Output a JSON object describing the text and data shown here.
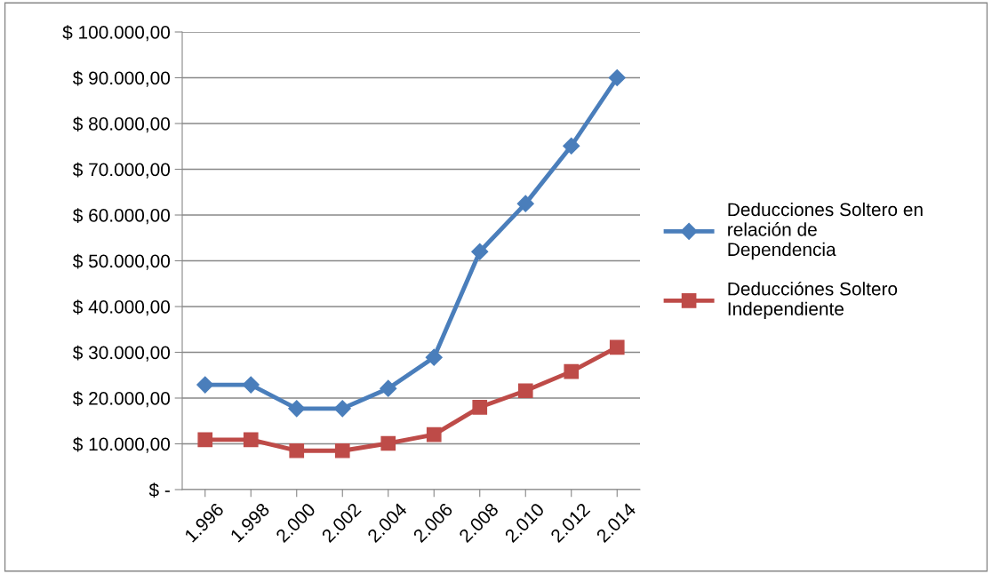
{
  "chart_data": {
    "type": "line",
    "categories": [
      "1.996",
      "1.998",
      "2.000",
      "2.002",
      "2.004",
      "2.006",
      "2.008",
      "2.010",
      "2.012",
      "2.014"
    ],
    "series": [
      {
        "name": "Deducciones Soltero en relación de Dependencia",
        "color": "#4a7ebb",
        "marker": "diamond",
        "values": [
          22900,
          22900,
          17700,
          17700,
          22100,
          28900,
          52000,
          62500,
          75100,
          90000
        ]
      },
      {
        "name": "Deducciónes Soltero Independiente",
        "color": "#be4b48",
        "marker": "square",
        "values": [
          10900,
          10900,
          8500,
          8500,
          10100,
          12000,
          18000,
          21600,
          25800,
          31100
        ]
      }
    ],
    "ylim": [
      0,
      100000
    ],
    "yticks": [
      {
        "value": 0,
        "label": "$ -"
      },
      {
        "value": 10000,
        "label": "$ 10.000,00"
      },
      {
        "value": 20000,
        "label": "$ 20.000,00"
      },
      {
        "value": 30000,
        "label": "$ 30.000,00"
      },
      {
        "value": 40000,
        "label": "$ 40.000,00"
      },
      {
        "value": 50000,
        "label": "$ 50.000,00"
      },
      {
        "value": 60000,
        "label": "$ 60.000,00"
      },
      {
        "value": 70000,
        "label": "$ 70.000,00"
      },
      {
        "value": 80000,
        "label": "$ 80.000,00"
      },
      {
        "value": 90000,
        "label": "$ 90.000,00"
      },
      {
        "value": 100000,
        "label": "$ 100.000,00"
      }
    ],
    "grid": "y",
    "legend": "right",
    "line_style": "solid"
  }
}
